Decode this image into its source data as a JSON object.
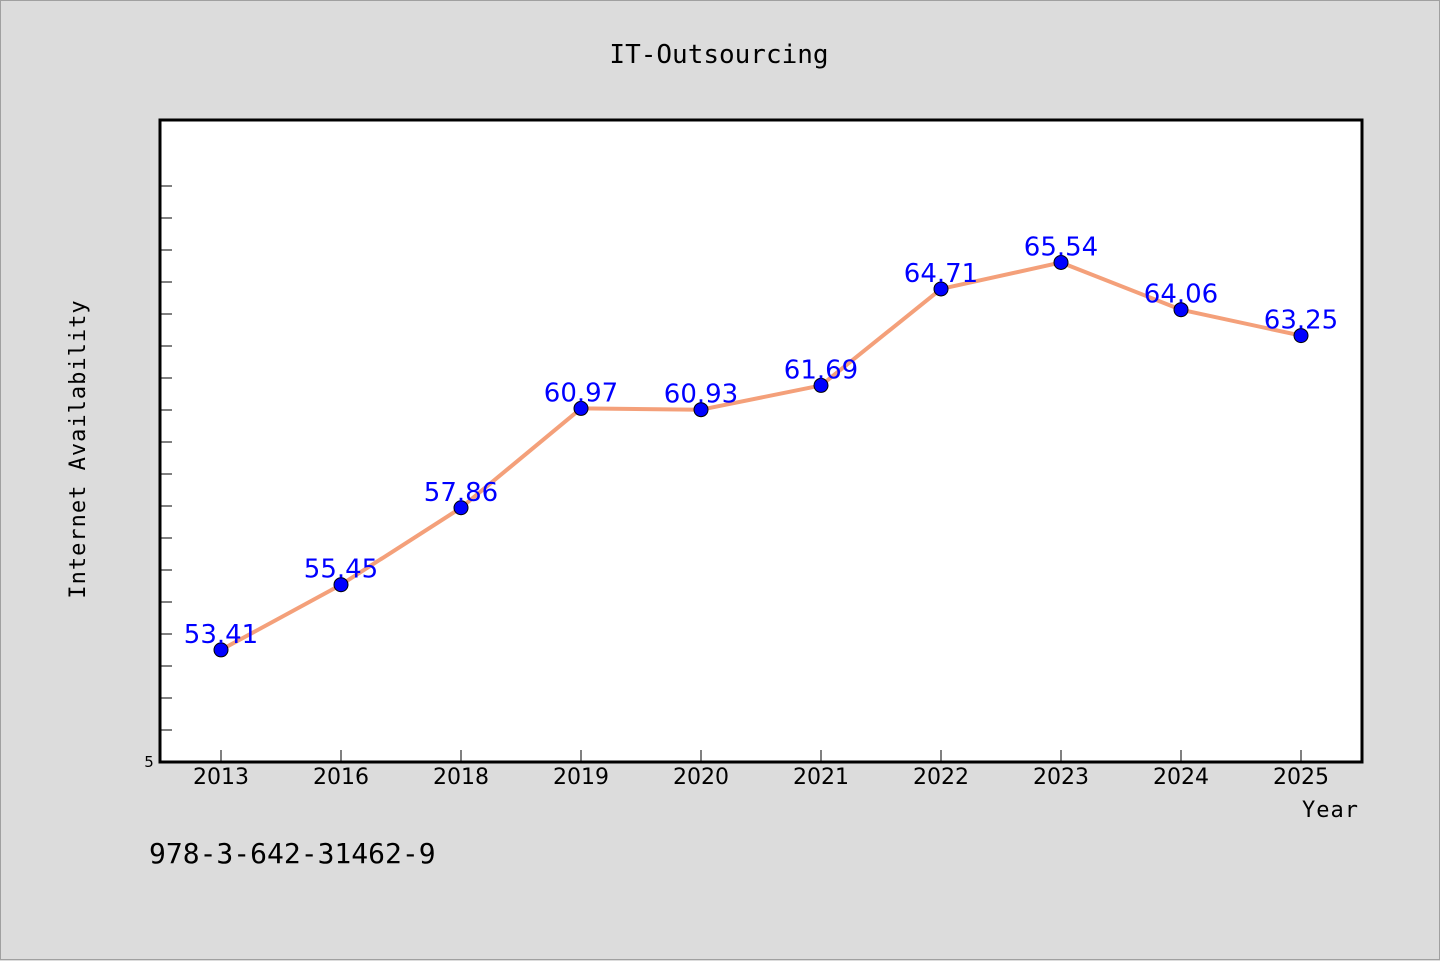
{
  "chart_data": {
    "type": "line",
    "title": "IT-Outsourcing",
    "xlabel": "Year",
    "ylabel": "Internet Availability",
    "categories": [
      "2013",
      "2016",
      "2018",
      "2019",
      "2020",
      "2021",
      "2022",
      "2023",
      "2024",
      "2025"
    ],
    "series": [
      {
        "values": [
          53.41,
          55.45,
          57.86,
          60.97,
          60.93,
          61.69,
          64.71,
          65.54,
          64.06,
          63.25
        ],
        "line_color": "#f4a07a",
        "marker_color": "#0000ff",
        "label_color": "#0000ff"
      }
    ],
    "ytick_labels": [
      "5"
    ],
    "ylim": [
      49.9,
      70
    ],
    "grid": false,
    "legend": "none"
  },
  "footer": {
    "code": "978-3-642-31462-9"
  },
  "colors": {
    "background": "#dcdcdc",
    "plot_background": "#ffffff"
  }
}
